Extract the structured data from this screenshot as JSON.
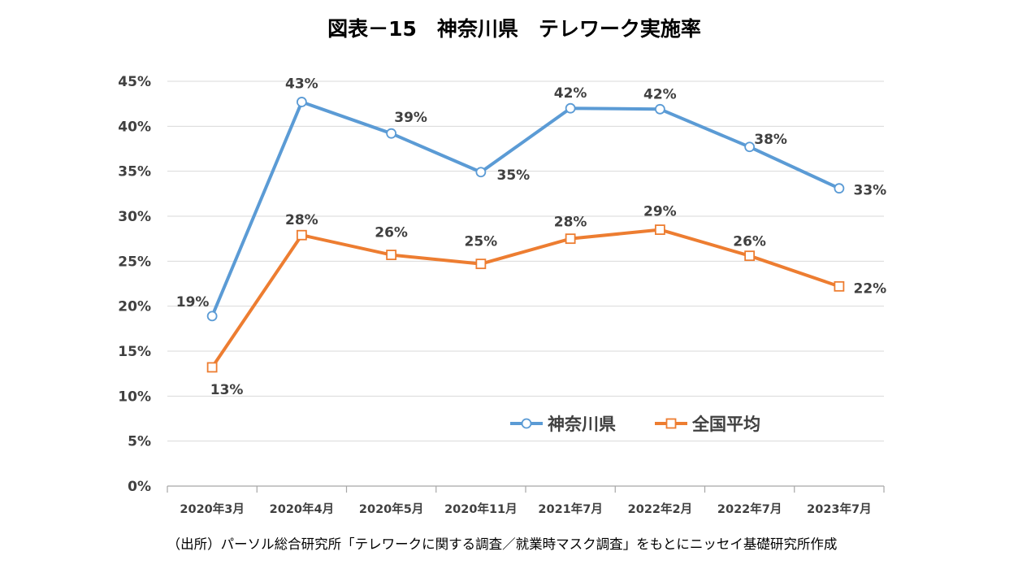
{
  "chart_data": {
    "type": "line",
    "title": "図表－15　神奈川県　テレワーク実施率",
    "categories": [
      "2020年3月",
      "2020年4月",
      "2020年5月",
      "2020年11月",
      "2021年7月",
      "2022年2月",
      "2022年7月",
      "2023年7月"
    ],
    "ylim": [
      0,
      45
    ],
    "yticks": [
      0,
      5,
      10,
      15,
      20,
      25,
      30,
      35,
      40,
      45
    ],
    "ytick_labels": [
      "0%",
      "5%",
      "10%",
      "15%",
      "20%",
      "25%",
      "30%",
      "35%",
      "40%",
      "45%"
    ],
    "xlabel": "",
    "ylabel": "",
    "grid": true,
    "legend_position": "lower-right",
    "series": [
      {
        "name": "神奈川県",
        "color": "#5B9BD5",
        "marker": "circle",
        "values": [
          18.9,
          42.7,
          39.2,
          34.9,
          42.0,
          41.9,
          37.7,
          33.1
        ],
        "labels": [
          "19%",
          "43%",
          "39%",
          "35%",
          "42%",
          "42%",
          "38%",
          "33%"
        ]
      },
      {
        "name": "全国平均",
        "color": "#ED7D31",
        "marker": "square",
        "values": [
          13.2,
          27.9,
          25.7,
          24.7,
          27.5,
          28.5,
          25.6,
          22.2
        ],
        "labels": [
          "13%",
          "28%",
          "26%",
          "25%",
          "28%",
          "29%",
          "26%",
          "22%"
        ]
      }
    ],
    "source": "（出所）パーソル総合研究所「テレワークに関する調査／就業時マスク調査」をもとにニッセイ基礎研究所作成"
  }
}
